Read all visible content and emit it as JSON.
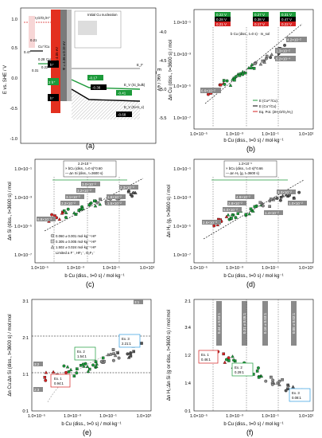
{
  "panels": {
    "a": {
      "label": "(a)",
      "ylabel": "E vs. SHE / V",
      "ylabel_right": "E_vac / eV",
      "yticks": [
        "1.0",
        "0.5",
        "0.0",
        "-0.5",
        "-1.0"
      ],
      "yticks_right": [
        "-4.0",
        "-4.5",
        "-5.0",
        "-5.5"
      ],
      "o2_label": "2H₂O/O₂/H⁺",
      "couples": [
        {
          "value": "1.23",
          "label": ""
        },
        {
          "value": "0.79",
          "label": ""
        },
        {
          "value": "0.47",
          "label": "Cu⁺/Cu"
        },
        {
          "value": "0.28",
          "label": "Cu²⁺/Cu"
        },
        {
          "value": "0.21",
          "label": ""
        },
        {
          "value": "0.31",
          "label": ""
        },
        {
          "value": "0.22",
          "label": ""
        }
      ],
      "band_labels": [
        "χ = 4.05 eV",
        "Φ = 4.36 ± 0.19 eV"
      ],
      "nucleation_title": "Initial Cu nucleation",
      "energy_labels": [
        "-0.17",
        "-0.38",
        "-0.41",
        "-0.68"
      ],
      "ef": "E_F",
      "ev_si": "E_V (Si_bulk)",
      "ev_sih": "E_V (Si-H_x)",
      "holes": [
        "h⁺",
        "2 h⁺",
        "h⁺"
      ]
    },
    "b": {
      "label": "(b)",
      "xlabel": "b Cu (diss., t=0 s) / mol·kg⁻¹",
      "ylabel": "Δn Cu (diss., t=3600 s) / mol",
      "xticks": [
        "1.0×10⁻⁵",
        "1.0×10⁻³",
        "1.0×10⁻¹",
        "1.0×10¹"
      ],
      "yticks": [
        "1.0×10⁻¹",
        "1.0×10⁻³",
        "1.0×10⁻⁵",
        "1.0×10⁻⁷"
      ],
      "top_boxes": [
        [
          "0.22 V",
          "0.28 V",
          "0.21 V"
        ],
        [
          "0.27 V",
          "0.38 V",
          "0.17 V"
        ],
        [
          "0.31 V",
          "0.47 V",
          "0.22 V"
        ]
      ],
      "annotation": "b Cu (diss., t=0 s) · m_sol",
      "ratio_labels": [
        "6.6×10⁻²",
        "4.2×10⁻²",
        "1.3×10⁻²",
        "5.2×10⁻⁴"
      ],
      "legend": [
        "E (Cu²⁺/Cu)",
        "E (Cu⁺/Cu)",
        "Eq. Pot. (2H₂O/O₂/H₂)"
      ]
    },
    "c": {
      "label": "(c)",
      "xlabel": "b Cu (diss., t=0 s) / mol·kg⁻¹",
      "ylabel": "Δn Si (diss., t=3600 s) / mol",
      "xticks": [
        "1.0×10⁻⁵",
        "1.0×10⁻³",
        "1.0×10⁻¹",
        "1.0×10¹"
      ],
      "yticks": [
        "1.0×10⁻¹",
        "1.0×10⁻³",
        "1.0×10⁻⁵",
        "1.0×10⁻⁷"
      ],
      "box_line1": "2.2×10⁻²",
      "box_line2": "× bCu (diss., t=0 s)^0.60",
      "box_line3": "— Δn Si (diss., t=3600 s)",
      "ratio_labels": [
        "2.3×10⁻²",
        "3.0×10⁻²",
        "3.2×10⁻²",
        "3.1×10⁻²",
        "2.2×10⁻²",
        "8.9×10⁻³",
        "1.6×10⁻²",
        "1.5×10⁻²"
      ],
      "legend": [
        "0.060 ± 0.001 mol·kg⁻¹ HF",
        "0.305 ± 0.005 mol·kg⁻¹ HF",
        "1.502 ± 0.024 mol·kg⁻¹ HF",
        "Limited a F⁻, HF₂⁻, H₂F₃⁻"
      ]
    },
    "d": {
      "label": "(d)",
      "xlabel": "b Cu (diss., t=0 s) / mol·kg⁻¹",
      "ylabel": "Δn H₂ (g, t=3600 s) / mol",
      "xticks": [
        "1.0×10⁻⁵",
        "1.0×10⁻³",
        "1.0×10⁻¹",
        "1.0×10¹"
      ],
      "yticks": [
        "1.0×10⁻¹",
        "1.0×10⁻³",
        "1.0×10⁻⁵",
        "1.0×10⁻⁷"
      ],
      "box_line1": "1.2×10⁻²",
      "box_line2": "× bCu (diss., t=0 s)^0.66",
      "box_line3": "— Δn H₂ (g, t=3600 s)",
      "ratio_labels": [
        "3.3×10⁻²",
        "4.9×10⁻²",
        "2.8×10⁻²",
        "6.0×10⁻²",
        "1.0×10⁻²",
        "1.4×10⁻²",
        "2.6×10⁻³"
      ]
    },
    "e": {
      "label": "(e)",
      "xlabel": "b Cu (diss., t=0 s) / mol·kg⁻¹",
      "ylabel": "Δn Cu:Δn Si (diss., t=3600 s) / mol:mol",
      "xticks": [
        "1.0×10⁻⁵",
        "1.0×10⁻³",
        "1.0×10⁻¹",
        "1.0×10¹"
      ],
      "yticks": [
        "3:1",
        "2:1",
        "1:1",
        "0:1"
      ],
      "ex1": "Ex. 1\n0.94:1",
      "ex2": "Ex. 2\n1.54:1",
      "ex3": "Ex. 3\n2.21:1",
      "ref_labels": [
        "3:1",
        "2:1",
        "1:1",
        "3:2",
        "2:3"
      ]
    },
    "f": {
      "label": "(f)",
      "xlabel": "b Cu (diss., t=0 s) / mol·kg⁻¹",
      "ylabel": "Δn H₂:Δn Si (g or diss., t=3600 s) / mol:mol",
      "xticks": [
        "1.0×10⁻⁵",
        "1.0×10⁻³",
        "1.0×10⁻¹",
        "1.0×10¹"
      ],
      "yticks": [
        "2:1",
        "3:4",
        "1:2",
        "1:4",
        "0:1"
      ],
      "ex1": "Ex. 1\n0.46:1",
      "ex2": "Ex. 2\n0.29:1",
      "ex3": "Ex. 3\n0.08:1",
      "vert_labels": [
        "0.44 ± 0.03:1",
        "0.31 ± 0.05:1",
        "0.16 ± 0.03:1",
        "0.05 ± 0.02:1"
      ]
    }
  },
  "colors": {
    "red": "#d62222",
    "green": "#1c9a3a",
    "black": "#111111",
    "blue": "#2f9be0",
    "gray": "#8a8a8a",
    "darkgray": "#555555"
  }
}
